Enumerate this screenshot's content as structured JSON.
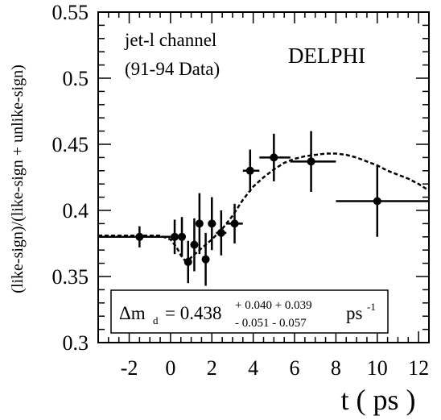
{
  "chart_data": {
    "type": "scatter",
    "title": "",
    "xlabel": "t ( ps )",
    "ylabel": "(like-sign)/(like-sign + unlike-sign)",
    "xlim": [
      -3.5,
      12.5
    ],
    "ylim": [
      0.3,
      0.55
    ],
    "x_ticks": [
      -2,
      0,
      2,
      4,
      6,
      8,
      10,
      12
    ],
    "x_tick_labels": [
      "-2",
      "0",
      "2",
      "4",
      "6",
      "8",
      "10",
      "12"
    ],
    "y_ticks": [
      0.3,
      0.35,
      0.4,
      0.45,
      0.5,
      0.55
    ],
    "y_tick_labels": [
      "0.3",
      "0.35",
      "0.4",
      "0.45",
      "0.5",
      "0.55"
    ],
    "grid": false,
    "annotations": {
      "channel": "jet-l channel",
      "data_range": "(91-94 Data)",
      "experiment": "DELPHI"
    },
    "result_box": {
      "lhs_main": "Δm",
      "lhs_sub": "d",
      "equals": "= 0.438",
      "plus_errors": "+ 0.040 + 0.039",
      "minus_errors": "- 0.051 - 0.057",
      "unit": "ps",
      "unit_exp": "-1"
    },
    "series": [
      {
        "style": "points",
        "points": [
          {
            "x": -1.5,
            "y": 0.38,
            "xlo": -3.5,
            "xhi": 0.0,
            "yerr": 0.008
          },
          {
            "x": 0.2,
            "y": 0.38,
            "xlo": 0.0,
            "xhi": 0.4,
            "yerr": 0.013
          },
          {
            "x": 0.55,
            "y": 0.38,
            "xlo": 0.4,
            "xhi": 0.7,
            "yerr": 0.015
          },
          {
            "x": 0.85,
            "y": 0.361,
            "xlo": 0.7,
            "xhi": 1.0,
            "yerr": 0.016
          },
          {
            "x": 1.15,
            "y": 0.374,
            "xlo": 1.0,
            "xhi": 1.3,
            "yerr": 0.02
          },
          {
            "x": 1.4,
            "y": 0.39,
            "xlo": 1.3,
            "xhi": 1.55,
            "yerr": 0.023
          },
          {
            "x": 1.7,
            "y": 0.363,
            "xlo": 1.55,
            "xhi": 1.85,
            "yerr": 0.02
          },
          {
            "x": 2.0,
            "y": 0.39,
            "xlo": 1.85,
            "xhi": 2.2,
            "yerr": 0.02
          },
          {
            "x": 2.45,
            "y": 0.383,
            "xlo": 2.2,
            "xhi": 2.7,
            "yerr": 0.017
          },
          {
            "x": 3.1,
            "y": 0.39,
            "xlo": 2.7,
            "xhi": 3.5,
            "yerr": 0.015
          },
          {
            "x": 3.85,
            "y": 0.43,
            "xlo": 3.5,
            "xhi": 4.3,
            "yerr": 0.016
          },
          {
            "x": 5.0,
            "y": 0.44,
            "xlo": 4.3,
            "xhi": 5.8,
            "yerr": 0.018
          },
          {
            "x": 6.8,
            "y": 0.437,
            "xlo": 5.8,
            "xhi": 8.0,
            "yerr": 0.023
          },
          {
            "x": 10.0,
            "y": 0.407,
            "xlo": 8.0,
            "xhi": 12.5,
            "yerr": 0.027
          }
        ]
      },
      {
        "style": "dashed-fit",
        "points": [
          [
            -3.5,
            0.381
          ],
          [
            -2.5,
            0.381
          ],
          [
            -1.5,
            0.381
          ],
          [
            -0.5,
            0.381
          ],
          [
            0.0,
            0.378
          ],
          [
            0.3,
            0.372
          ],
          [
            0.5,
            0.366
          ],
          [
            0.7,
            0.362
          ],
          [
            0.9,
            0.363
          ],
          [
            1.1,
            0.366
          ],
          [
            1.4,
            0.37
          ],
          [
            1.7,
            0.374
          ],
          [
            2.0,
            0.378
          ],
          [
            2.5,
            0.386
          ],
          [
            3.0,
            0.396
          ],
          [
            3.5,
            0.408
          ],
          [
            4.0,
            0.418
          ],
          [
            4.5,
            0.425
          ],
          [
            5.0,
            0.431
          ],
          [
            5.5,
            0.436
          ],
          [
            6.0,
            0.439
          ],
          [
            6.5,
            0.441
          ],
          [
            7.0,
            0.442
          ],
          [
            7.5,
            0.443
          ],
          [
            8.0,
            0.443
          ],
          [
            8.5,
            0.442
          ],
          [
            9.0,
            0.44
          ],
          [
            9.5,
            0.437
          ],
          [
            10.0,
            0.434
          ],
          [
            10.5,
            0.43
          ],
          [
            11.0,
            0.427
          ],
          [
            11.5,
            0.424
          ],
          [
            12.0,
            0.42
          ],
          [
            12.5,
            0.415
          ]
        ]
      }
    ]
  }
}
